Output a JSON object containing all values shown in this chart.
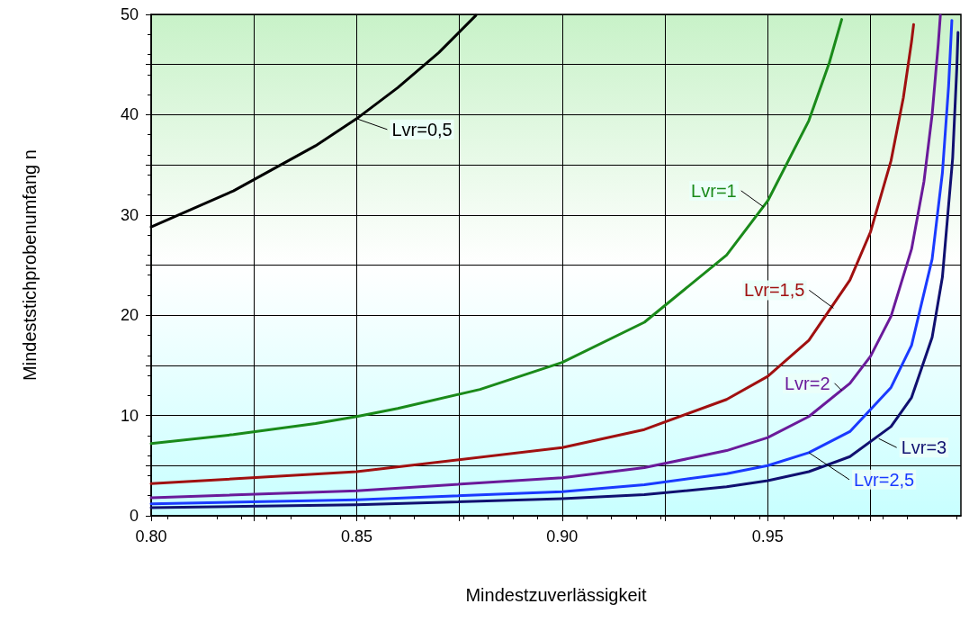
{
  "chart_data": {
    "type": "line",
    "xlabel": "Mindestzuverlässigkeit",
    "ylabel": "Mindeststichprobenumfang n",
    "xlim": [
      0.8,
      0.997
    ],
    "ylim": [
      0,
      50
    ],
    "xticks": [
      {
        "value": 0.8,
        "label": "0.80"
      },
      {
        "value": 0.825,
        "label": null
      },
      {
        "value": 0.85,
        "label": "0.85"
      },
      {
        "value": 0.875,
        "label": null
      },
      {
        "value": 0.9,
        "label": "0.90"
      },
      {
        "value": 0.925,
        "label": null
      },
      {
        "value": 0.95,
        "label": "0.95"
      },
      {
        "value": 0.975,
        "label": null
      }
    ],
    "yticks": [
      0,
      {
        "value": 5,
        "label": null
      },
      10,
      {
        "value": 15,
        "label": null
      },
      20,
      {
        "value": 25,
        "label": null
      },
      30,
      {
        "value": 35,
        "label": null
      },
      40,
      {
        "value": 45,
        "label": null
      },
      50
    ],
    "grid": true,
    "marker": "none",
    "line_style": "solid",
    "series": [
      {
        "color": "#000000",
        "x": [
          0.8,
          0.82,
          0.84,
          0.85,
          0.86,
          0.87,
          0.879
        ],
        "values": [
          28.8,
          32.4,
          36.9,
          39.6,
          42.7,
          46.2,
          49.9
        ]
      },
      {
        "color": "#1a8a1a",
        "x": [
          0.8,
          0.82,
          0.84,
          0.85,
          0.86,
          0.88,
          0.9,
          0.92,
          0.94,
          0.95,
          0.96,
          0.965,
          0.968
        ],
        "values": [
          7.2,
          8.1,
          9.2,
          9.9,
          10.7,
          12.6,
          15.3,
          19.3,
          26.0,
          31.4,
          39.4,
          45.2,
          49.5
        ]
      },
      {
        "color": "#a01010",
        "x": [
          0.8,
          0.85,
          0.9,
          0.92,
          0.94,
          0.95,
          0.96,
          0.97,
          0.975,
          0.98,
          0.983,
          0.985,
          0.9855
        ],
        "values": [
          3.2,
          4.4,
          6.8,
          8.6,
          11.6,
          13.9,
          17.5,
          23.5,
          28.3,
          35.4,
          41.7,
          47.3,
          49.0
        ]
      },
      {
        "color": "#6a1a9a",
        "x": [
          0.8,
          0.85,
          0.9,
          0.92,
          0.94,
          0.95,
          0.96,
          0.97,
          0.975,
          0.98,
          0.985,
          0.988,
          0.99,
          0.9915,
          0.992
        ],
        "values": [
          1.8,
          2.5,
          3.8,
          4.8,
          6.5,
          7.8,
          9.9,
          13.2,
          15.9,
          19.9,
          26.6,
          33.3,
          40.0,
          47.1,
          49.9
        ]
      },
      {
        "color": "#1a3aff",
        "x": [
          0.8,
          0.85,
          0.9,
          0.92,
          0.94,
          0.95,
          0.96,
          0.97,
          0.98,
          0.985,
          0.99,
          0.9925,
          0.994,
          0.9948
        ],
        "values": [
          1.2,
          1.6,
          2.4,
          3.1,
          4.2,
          5.0,
          6.3,
          8.4,
          12.8,
          17.0,
          25.6,
          34.2,
          42.8,
          49.4
        ]
      },
      {
        "color": "#101070",
        "x": [
          0.8,
          0.85,
          0.9,
          0.92,
          0.94,
          0.95,
          0.96,
          0.97,
          0.98,
          0.985,
          0.99,
          0.9925,
          0.995,
          0.996,
          0.9963
        ],
        "values": [
          0.8,
          1.1,
          1.7,
          2.1,
          2.9,
          3.5,
          4.4,
          5.9,
          8.9,
          11.8,
          17.8,
          23.8,
          35.7,
          44.6,
          48.2
        ]
      }
    ],
    "annotations": [
      {
        "text": "Lvr=0,5",
        "x": 0.85,
        "y": 39.6
      },
      {
        "text": "Lvr=1",
        "x": 0.949,
        "y": 30.8
      },
      {
        "text": "Lvr=1,5",
        "x": 0.966,
        "y": 20.7
      },
      {
        "text": "Lvr=2",
        "x": 0.968,
        "y": 12.5
      },
      {
        "text": "Lvr=2,5",
        "x": 0.96,
        "y": 6.3
      },
      {
        "text": "Lvr=3",
        "x": 0.977,
        "y": 7.7
      }
    ]
  }
}
